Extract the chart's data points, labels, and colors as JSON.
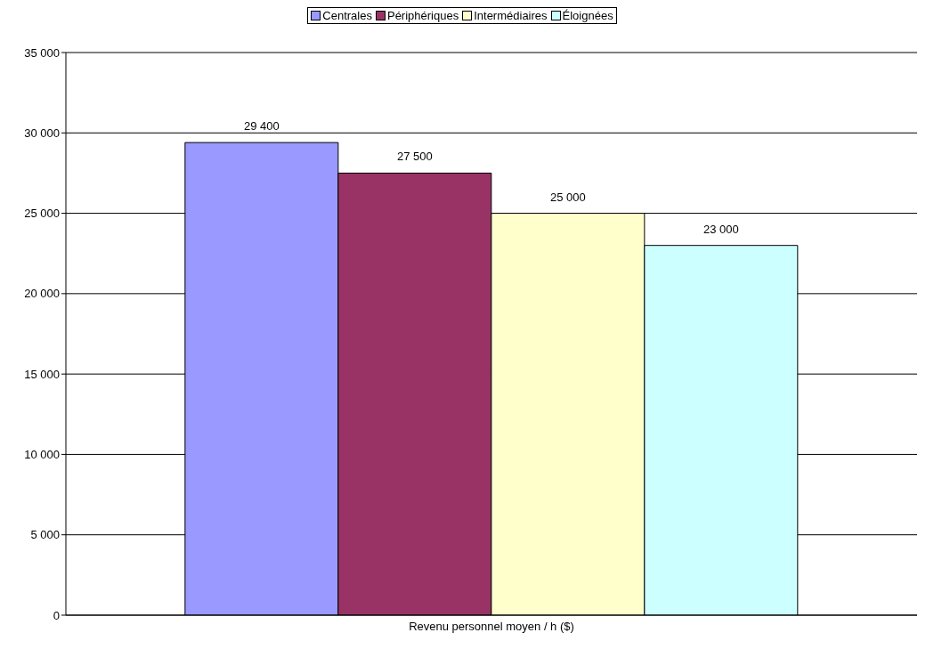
{
  "chart_data": {
    "type": "bar",
    "categories": [
      "Revenu personnel moyen / h ($)"
    ],
    "series": [
      {
        "name": "Centrales",
        "color": "#9999ff",
        "values": [
          29400
        ],
        "value_labels": [
          "29 400"
        ]
      },
      {
        "name": "Périphériques",
        "color": "#993366",
        "values": [
          27500
        ],
        "value_labels": [
          "27 500"
        ]
      },
      {
        "name": "Intermédiaires",
        "color": "#ffffcc",
        "values": [
          25000
        ],
        "value_labels": [
          "25 000"
        ]
      },
      {
        "name": "Éloignées",
        "color": "#ccffff",
        "values": [
          23000
        ],
        "value_labels": [
          "23 000"
        ]
      }
    ],
    "ylim": [
      0,
      35000
    ],
    "yticks": [
      {
        "value": 0,
        "label": "0"
      },
      {
        "value": 5000,
        "label": "5 000"
      },
      {
        "value": 10000,
        "label": "10 000"
      },
      {
        "value": 15000,
        "label": "15 000"
      },
      {
        "value": 20000,
        "label": "20 000"
      },
      {
        "value": 25000,
        "label": "25 000"
      },
      {
        "value": 30000,
        "label": "30 000"
      },
      {
        "value": 35000,
        "label": "35 000"
      }
    ],
    "grid": "y",
    "legend": "top"
  }
}
